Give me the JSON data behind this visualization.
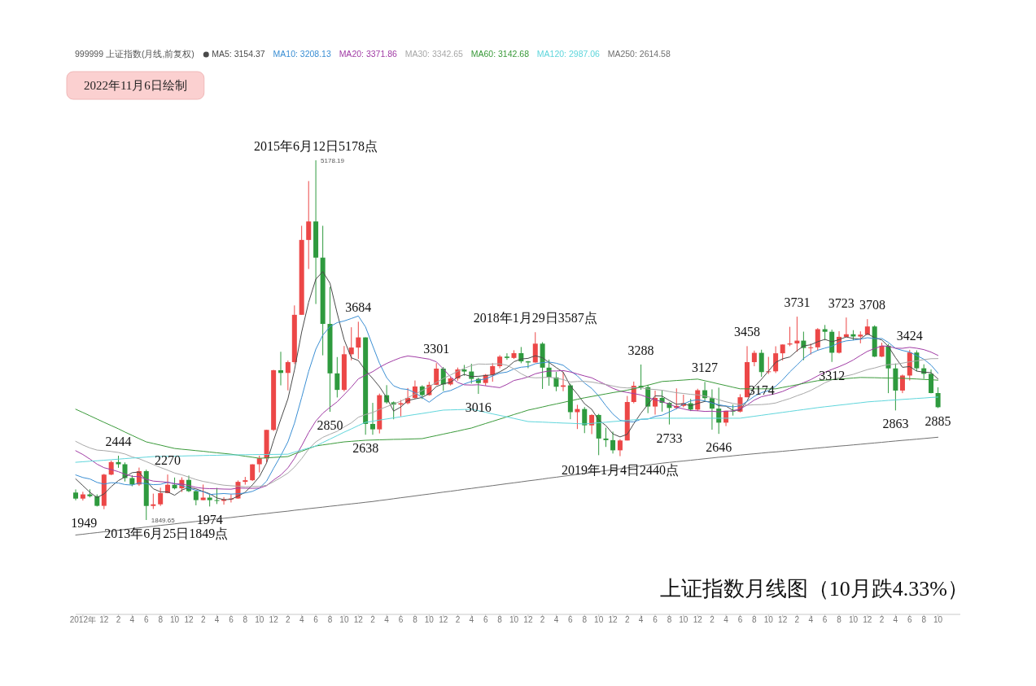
{
  "chart_data": {
    "type": "candlestick",
    "title": "上证指数月线图（10月跌4.33%）",
    "legend_title": "999999 上证指数(月线,前复权)",
    "legend": "top left",
    "tick_labels": "x",
    "xlim": [
      "2012-08",
      "2023-01-05"
    ],
    "x": [
      "2012-08",
      "2012-09",
      "2012-10",
      "2012-11",
      "2012-12",
      "2013-01",
      "2013-02",
      "2013-03",
      "2013-04",
      "2013-05",
      "2013-06",
      "2013-07",
      "2013-08",
      "2013-09",
      "2013-10",
      "2013-11",
      "2013-12",
      "2014-01",
      "2014-02",
      "2014-03",
      "2014-04",
      "2014-05",
      "2014-06",
      "2014-07",
      "2014-08",
      "2014-09",
      "2014-10",
      "2014-11",
      "2014-12",
      "2015-01",
      "2015-02",
      "2015-03",
      "2015-04",
      "2015-05",
      "2015-06",
      "2015-07",
      "2015-08",
      "2015-09",
      "2015-10",
      "2015-11",
      "2015-12",
      "2016-01",
      "2016-02",
      "2016-03",
      "2016-04",
      "2016-05",
      "2016-06",
      "2016-07",
      "2016-08",
      "2016-09",
      "2016-10",
      "2016-11",
      "2016-12",
      "2017-01",
      "2017-02",
      "2017-03",
      "2017-04",
      "2017-05",
      "2017-06",
      "2017-07",
      "2017-08",
      "2017-09",
      "2017-10",
      "2017-11",
      "2017-12",
      "2018-01",
      "2018-02",
      "2018-03",
      "2018-04",
      "2018-05",
      "2018-06",
      "2018-07",
      "2018-08",
      "2018-09",
      "2018-10",
      "2018-11",
      "2018-12",
      "2019-01",
      "2019-02",
      "2019-03",
      "2019-04",
      "2019-05",
      "2019-06",
      "2019-07",
      "2019-08",
      "2019-09",
      "2019-10",
      "2019-11",
      "2019-12",
      "2020-01",
      "2020-02",
      "2020-03",
      "2020-04",
      "2020-05",
      "2020-06",
      "2020-07",
      "2020-08",
      "2020-09",
      "2020-10",
      "2020-11",
      "2020-12",
      "2021-01",
      "2021-02",
      "2021-03",
      "2021-04",
      "2021-05",
      "2021-06",
      "2021-07",
      "2021-08",
      "2021-09",
      "2021-10",
      "2021-11",
      "2021-12",
      "2022-01",
      "2022-02",
      "2022-03",
      "2022-04",
      "2022-05",
      "2022-06",
      "2022-07",
      "2022-08",
      "2022-09",
      "2022-10"
    ],
    "xticks": [
      {
        "value": "2012-09",
        "label": "2012年"
      },
      {
        "value": "2012-12",
        "label": "12"
      },
      {
        "value": "2013-02",
        "label": "2"
      },
      {
        "value": "2013-04",
        "label": "4"
      },
      {
        "value": "2013-06",
        "label": "6"
      },
      {
        "value": "2013-08",
        "label": "8"
      },
      {
        "value": "2013-10",
        "label": "10"
      },
      {
        "value": "2013-12",
        "label": "12"
      },
      {
        "value": "2014-02",
        "label": "2"
      },
      {
        "value": "2014-04",
        "label": "4"
      },
      {
        "value": "2014-06",
        "label": "6"
      },
      {
        "value": "2014-08",
        "label": "8"
      },
      {
        "value": "2014-10",
        "label": "10"
      },
      {
        "value": "2014-12",
        "label": "12"
      },
      {
        "value": "2015-02",
        "label": "2"
      },
      {
        "value": "2015-04",
        "label": "4"
      },
      {
        "value": "2015-06",
        "label": "6"
      },
      {
        "value": "2015-08",
        "label": "8"
      },
      {
        "value": "2015-10",
        "label": "10"
      },
      {
        "value": "2015-12",
        "label": "12"
      },
      {
        "value": "2016-02",
        "label": "2"
      },
      {
        "value": "2016-04",
        "label": "4"
      },
      {
        "value": "2016-06",
        "label": "6"
      },
      {
        "value": "2016-08",
        "label": "8"
      },
      {
        "value": "2016-10",
        "label": "10"
      },
      {
        "value": "2016-12",
        "label": "12"
      },
      {
        "value": "2017-02",
        "label": "2"
      },
      {
        "value": "2017-04",
        "label": "4"
      },
      {
        "value": "2017-06",
        "label": "6"
      },
      {
        "value": "2017-08",
        "label": "8"
      },
      {
        "value": "2017-10",
        "label": "10"
      },
      {
        "value": "2017-12",
        "label": "12"
      },
      {
        "value": "2018-02",
        "label": "2"
      },
      {
        "value": "2018-04",
        "label": "4"
      },
      {
        "value": "2018-06",
        "label": "6"
      },
      {
        "value": "2018-08",
        "label": "8"
      },
      {
        "value": "2018-10",
        "label": "10"
      },
      {
        "value": "2018-12",
        "label": "12"
      },
      {
        "value": "2019-02",
        "label": "2"
      },
      {
        "value": "2019-04",
        "label": "4"
      },
      {
        "value": "2019-06",
        "label": "6"
      },
      {
        "value": "2019-08",
        "label": "8"
      },
      {
        "value": "2019-10",
        "label": "10"
      },
      {
        "value": "2019-12",
        "label": "12"
      },
      {
        "value": "2020-02",
        "label": "2"
      },
      {
        "value": "2020-04",
        "label": "4"
      },
      {
        "value": "2020-06",
        "label": "6"
      },
      {
        "value": "2020-08",
        "label": "8"
      },
      {
        "value": "2020-10",
        "label": "10"
      },
      {
        "value": "2020-12",
        "label": "12"
      },
      {
        "value": "2021-02",
        "label": "2"
      },
      {
        "value": "2021-04",
        "label": "4"
      },
      {
        "value": "2021-06",
        "label": "6"
      },
      {
        "value": "2021-08",
        "label": "8"
      },
      {
        "value": "2021-10",
        "label": "10"
      },
      {
        "value": "2021-12",
        "label": "12"
      },
      {
        "value": "2022-02",
        "label": "2"
      },
      {
        "value": "2022-04",
        "label": "4"
      },
      {
        "value": "2022-06",
        "label": "6"
      },
      {
        "value": "2022-08",
        "label": "8"
      },
      {
        "value": "2022-10",
        "label": "10"
      }
    ],
    "ohlc": [
      [
        2103,
        2132,
        2031,
        2047
      ],
      [
        2047,
        2110,
        2029,
        2086
      ],
      [
        2086,
        2133,
        2058,
        2069
      ],
      [
        2069,
        2086,
        1974,
        1980
      ],
      [
        1980,
        2276,
        1949,
        2269
      ],
      [
        2269,
        2398,
        2264,
        2385
      ],
      [
        2385,
        2444,
        2332,
        2365
      ],
      [
        2365,
        2382,
        2205,
        2237
      ],
      [
        2237,
        2263,
        2161,
        2178
      ],
      [
        2178,
        2334,
        2164,
        2301
      ],
      [
        2301,
        2315,
        1849,
        1979
      ],
      [
        1979,
        2093,
        1951,
        1994
      ],
      [
        1994,
        2148,
        1979,
        2098
      ],
      [
        2098,
        2270,
        2096,
        2175
      ],
      [
        2175,
        2242,
        2132,
        2142
      ],
      [
        2142,
        2244,
        2108,
        2220
      ],
      [
        2220,
        2260,
        2107,
        2116
      ],
      [
        2116,
        2126,
        1985,
        2033
      ],
      [
        2033,
        2177,
        2032,
        2056
      ],
      [
        2056,
        2086,
        1974,
        2033
      ],
      [
        2033,
        2146,
        1997,
        2026
      ],
      [
        2026,
        2061,
        1991,
        2039
      ],
      [
        2039,
        2087,
        2011,
        2048
      ],
      [
        2048,
        2215,
        2046,
        2202
      ],
      [
        2202,
        2248,
        2176,
        2217
      ],
      [
        2217,
        2365,
        2210,
        2364
      ],
      [
        2365,
        2445,
        2289,
        2420
      ],
      [
        2420,
        2683,
        2383,
        2683
      ],
      [
        2683,
        3239,
        2673,
        3235
      ],
      [
        3235,
        3406,
        3095,
        3210
      ],
      [
        3210,
        3325,
        3049,
        3310
      ],
      [
        3310,
        3835,
        3292,
        3748
      ],
      [
        3748,
        4572,
        3748,
        4441
      ],
      [
        4441,
        4986,
        4172,
        4612
      ],
      [
        4612,
        5178,
        3848,
        4277
      ],
      [
        4277,
        4572,
        3373,
        3664
      ],
      [
        3664,
        4006,
        2850,
        3206
      ],
      [
        3206,
        3357,
        2983,
        3053
      ],
      [
        3053,
        3459,
        3039,
        3383
      ],
      [
        3383,
        3633,
        3327,
        3445
      ],
      [
        3445,
        3684,
        3339,
        3539
      ],
      [
        3539,
        3539,
        2638,
        2738
      ],
      [
        2738,
        2933,
        2638,
        2688
      ],
      [
        2688,
        3019,
        2650,
        3004
      ],
      [
        3004,
        3097,
        2925,
        2938
      ],
      [
        2938,
        2946,
        2781,
        2917
      ],
      [
        2917,
        2960,
        2807,
        2930
      ],
      [
        2930,
        3070,
        2920,
        2979
      ],
      [
        2979,
        3140,
        2970,
        3085
      ],
      [
        3085,
        3096,
        2969,
        3005
      ],
      [
        3005,
        3128,
        3000,
        3100
      ],
      [
        3100,
        3301,
        3097,
        3250
      ],
      [
        3250,
        3265,
        3044,
        3104
      ],
      [
        3104,
        3174,
        3094,
        3159
      ],
      [
        3159,
        3260,
        3138,
        3242
      ],
      [
        3242,
        3284,
        3184,
        3223
      ],
      [
        3223,
        3295,
        3112,
        3155
      ],
      [
        3155,
        3167,
        3016,
        3117
      ],
      [
        3117,
        3200,
        3092,
        3192
      ],
      [
        3192,
        3301,
        3129,
        3273
      ],
      [
        3273,
        3375,
        3253,
        3361
      ],
      [
        3361,
        3392,
        3331,
        3349
      ],
      [
        3349,
        3420,
        3340,
        3393
      ],
      [
        3393,
        3450,
        3300,
        3317
      ],
      [
        3317,
        3321,
        3254,
        3307
      ],
      [
        3307,
        3587,
        3306,
        3481
      ],
      [
        3481,
        3495,
        3062,
        3259
      ],
      [
        3259,
        3334,
        3091,
        3169
      ],
      [
        3169,
        3220,
        3041,
        3082
      ],
      [
        3082,
        3219,
        3041,
        3095
      ],
      [
        3095,
        3111,
        2782,
        2847
      ],
      [
        2847,
        2915,
        2691,
        2876
      ],
      [
        2876,
        2894,
        2653,
        2725
      ],
      [
        2725,
        2827,
        2644,
        2821
      ],
      [
        2821,
        2831,
        2449,
        2603
      ],
      [
        2603,
        2703,
        2525,
        2588
      ],
      [
        2588,
        2667,
        2464,
        2494
      ],
      [
        2494,
        2597,
        2440,
        2585
      ],
      [
        2585,
        2997,
        2585,
        2941
      ],
      [
        2941,
        3130,
        2929,
        3091
      ],
      [
        3091,
        3288,
        3055,
        3078
      ],
      [
        3078,
        3100,
        2838,
        2899
      ],
      [
        2899,
        3047,
        2824,
        2979
      ],
      [
        2979,
        3049,
        2852,
        2933
      ],
      [
        2933,
        2939,
        2733,
        2886
      ],
      [
        2886,
        3067,
        2875,
        2905
      ],
      [
        2905,
        3009,
        2891,
        2929
      ],
      [
        2929,
        2970,
        2857,
        2871
      ],
      [
        2871,
        3064,
        2857,
        3050
      ],
      [
        3050,
        3127,
        2955,
        2977
      ],
      [
        2977,
        3058,
        2685,
        2880
      ],
      [
        2880,
        3074,
        2646,
        2750
      ],
      [
        2750,
        2860,
        2718,
        2860
      ],
      [
        2860,
        2917,
        2815,
        2852
      ],
      [
        2852,
        3013,
        2845,
        2985
      ],
      [
        2985,
        3458,
        2985,
        3310
      ],
      [
        3310,
        3417,
        3272,
        3396
      ],
      [
        3396,
        3425,
        3174,
        3218
      ],
      [
        3218,
        3359,
        3200,
        3225
      ],
      [
        3225,
        3457,
        3209,
        3392
      ],
      [
        3392,
        3474,
        3325,
        3473
      ],
      [
        3473,
        3637,
        3458,
        3483
      ],
      [
        3483,
        3731,
        3407,
        3509
      ],
      [
        3509,
        3592,
        3328,
        3441
      ],
      [
        3441,
        3482,
        3380,
        3447
      ],
      [
        3447,
        3625,
        3416,
        3615
      ],
      [
        3615,
        3654,
        3512,
        3591
      ],
      [
        3591,
        3611,
        3312,
        3397
      ],
      [
        3397,
        3596,
        3390,
        3544
      ],
      [
        3544,
        3723,
        3542,
        3568
      ],
      [
        3568,
        3606,
        3512,
        3547
      ],
      [
        3547,
        3595,
        3484,
        3564
      ],
      [
        3564,
        3708,
        3561,
        3640
      ],
      [
        3640,
        3651,
        3357,
        3361
      ],
      [
        3361,
        3490,
        3357,
        3462
      ],
      [
        3462,
        3478,
        3023,
        3252
      ],
      [
        3252,
        3298,
        2863,
        3047
      ],
      [
        3047,
        3195,
        3023,
        3186
      ],
      [
        3186,
        3424,
        3140,
        3399
      ],
      [
        3399,
        3419,
        3226,
        3253
      ],
      [
        3253,
        3290,
        3155,
        3202
      ],
      [
        3202,
        3242,
        3021,
        3024
      ],
      [
        3024,
        3077,
        2885,
        2893
      ]
    ],
    "series": [
      {
        "name": "MA5: 3154.37",
        "type": "line",
        "color": "#4a4a4a",
        "values": [
          2229,
          2167,
          2106,
          2057,
          2090,
          2158,
          2214,
          2247,
          2287,
          2293,
          2212,
          2138,
          2110,
          2109,
          2078,
          2126,
          2150,
          2137,
          2113,
          2092,
          2053,
          2037,
          2040,
          2070,
          2106,
          2174,
          2250,
          2377,
          2584,
          2782,
          2972,
          3237,
          3589,
          3864,
          4078,
          4148,
          4040,
          3762,
          3517,
          3350,
          3325,
          3232,
          3159,
          3083,
          2981,
          2857,
          2895,
          2954,
          2970,
          2983,
          3020,
          3084,
          3109,
          3124,
          3171,
          3196,
          3177,
          3179,
          3186,
          3192,
          3220,
          3258,
          3314,
          3339,
          3345,
          3369,
          3351,
          3307,
          3260,
          3217,
          3090,
          3014,
          2925,
          2873,
          2774,
          2723,
          2646,
          2618,
          2642,
          2740,
          2838,
          2919,
          2998,
          2996,
          2955,
          2920,
          2926,
          2905,
          2928,
          2946,
          2941,
          2906,
          2903,
          2864,
          2865,
          2951,
          3081,
          3152,
          3227,
          3308,
          3341,
          3358,
          3416,
          3460,
          3471,
          3499,
          3521,
          3498,
          3519,
          3543,
          3529,
          3524,
          3573,
          3536,
          3515,
          3456,
          3352,
          3262,
          3269,
          3227,
          3217,
          3213,
          3154
        ]
      },
      {
        "name": "MA10: 3208.13",
        "type": "line",
        "color": "#3b8fd4",
        "values": [
          2266,
          2242,
          2229,
          2197,
          2181,
          2194,
          2191,
          2177,
          2172,
          2192,
          2185,
          2176,
          2179,
          2198,
          2186,
          2169,
          2144,
          2124,
          2111,
          2085,
          2090,
          2094,
          2089,
          2092,
          2099,
          2114,
          2144,
          2209,
          2327,
          2444,
          2573,
          2744,
          2983,
          3224,
          3430,
          3560,
          3639,
          3676,
          3691,
          3714,
          3737,
          3636,
          3461,
          3300,
          3166,
          3091,
          3064,
          3057,
          3027,
          2982,
          2939,
          2990,
          3032,
          3047,
          3077,
          3108,
          3131,
          3144,
          3155,
          3182,
          3208,
          3218,
          3247,
          3263,
          3269,
          3295,
          3305,
          3311,
          3300,
          3281,
          3230,
          3183,
          3116,
          3067,
          2996,
          2907,
          2830,
          2772,
          2758,
          2757,
          2781,
          2783,
          2808,
          2819,
          2848,
          2879,
          2923,
          2952,
          2962,
          2951,
          2931,
          2916,
          2904,
          2896,
          2906,
          2946,
          2994,
          3028,
          3046,
          3087,
          3146,
          3220,
          3284,
          3344,
          3390,
          3420,
          3440,
          3457,
          3490,
          3507,
          3514,
          3523,
          3536,
          3528,
          3529,
          3493,
          3438,
          3418,
          3403,
          3371,
          3337,
          3283,
          3208
        ]
      },
      {
        "name": "MA20: 3371.86",
        "type": "line",
        "color": "#a13ca5",
        "values": [
          2490,
          2455,
          2413,
          2366,
          2333,
          2316,
          2296,
          2273,
          2253,
          2250,
          2226,
          2209,
          2204,
          2198,
          2184,
          2182,
          2168,
          2151,
          2142,
          2139,
          2138,
          2135,
          2134,
          2145,
          2143,
          2142,
          2144,
          2167,
          2219,
          2265,
          2332,
          2419,
          2536,
          2658,
          2765,
          2837,
          2892,
          2943,
          3009,
          3079,
          3155,
          3190,
          3222,
          3262,
          3298,
          3326,
          3352,
          3367,
          3359,
          3348,
          3338,
          3313,
          3247,
          3174,
          3122,
          3100,
          3098,
          3101,
          3091,
          3082,
          3074,
          3104,
          3140,
          3155,
          3173,
          3202,
          3218,
          3228,
          3228,
          3232,
          3219,
          3201,
          3182,
          3165,
          3133,
          3101,
          3068,
          3042,
          3029,
          3019,
          3006,
          2983,
          2962,
          2943,
          2922,
          2893,
          2877,
          2862,
          2860,
          2854,
          2856,
          2850,
          2856,
          2858,
          2877,
          2913,
          2959,
          2990,
          3004,
          3019,
          3039,
          3068,
          3094,
          3120,
          3148,
          3183,
          3217,
          3243,
          3268,
          3297,
          3330,
          3372,
          3410,
          3436,
          3460,
          3457,
          3439,
          3438,
          3447,
          3439,
          3426,
          3403,
          3372
        ]
      },
      {
        "name": "MA30: 3342.65",
        "type": "line",
        "color": "#a8a8a8",
        "values": [
          2577,
          2543,
          2516,
          2496,
          2491,
          2483,
          2474,
          2460,
          2433,
          2416,
          2389,
          2362,
          2335,
          2310,
          2284,
          2267,
          2246,
          2223,
          2206,
          2195,
          2181,
          2171,
          2166,
          2162,
          2156,
          2159,
          2160,
          2170,
          2203,
          2241,
          2283,
          2338,
          2417,
          2505,
          2572,
          2614,
          2643,
          2670,
          2710,
          2748,
          2800,
          2825,
          2844,
          2872,
          2898,
          2922,
          2949,
          2981,
          3015,
          3047,
          3083,
          3123,
          3159,
          3191,
          3225,
          3253,
          3278,
          3293,
          3291,
          3293,
          3295,
          3281,
          3247,
          3203,
          3171,
          3165,
          3167,
          3171,
          3161,
          3149,
          3126,
          3131,
          3132,
          3126,
          3114,
          3103,
          3089,
          3076,
          3071,
          3073,
          3073,
          3061,
          3057,
          3050,
          3038,
          3027,
          3020,
          3012,
          3007,
          2996,
          2981,
          2961,
          2943,
          2928,
          2917,
          2911,
          2916,
          2917,
          2922,
          2932,
          2953,
          2973,
          2999,
          3020,
          3048,
          3082,
          3119,
          3146,
          3166,
          3182,
          3197,
          3220,
          3241,
          3256,
          3275,
          3287,
          3291,
          3301,
          3313,
          3322,
          3333,
          3342,
          3343
        ]
      },
      {
        "name": "MA60: 3142.68",
        "type": "line",
        "color": "#3a9a3a",
        "values": [
          2874,
          2844,
          2814,
          2783,
          2753,
          2723,
          2693,
          2663,
          2632,
          2602,
          2572,
          2557,
          2542,
          2526,
          2511,
          2504,
          2498,
          2491,
          2485,
          2478,
          2471,
          2465,
          2458,
          2449,
          2439,
          2430,
          2420,
          2424,
          2428,
          2432,
          2436,
          2461,
          2485,
          2510,
          2534,
          2544,
          2553,
          2563,
          2572,
          2577,
          2582,
          2587,
          2589,
          2591,
          2593,
          2595,
          2596,
          2598,
          2600,
          2602,
          2616,
          2630,
          2644,
          2658,
          2672,
          2686,
          2700,
          2721,
          2742,
          2762,
          2783,
          2804,
          2825,
          2845,
          2866,
          2880,
          2895,
          2909,
          2923,
          2937,
          2952,
          2966,
          2980,
          2992,
          3004,
          3016,
          3028,
          3039,
          3051,
          3063,
          3080,
          3097,
          3114,
          3131,
          3135,
          3140,
          3144,
          3149,
          3153,
          3138,
          3123,
          3108,
          3093,
          3078,
          3063,
          3063,
          3063,
          3063,
          3063,
          3063,
          3076,
          3088,
          3101,
          3113,
          3126,
          3138,
          3143,
          3148,
          3153,
          3158,
          3163,
          3168,
          3167,
          3166,
          3164,
          3163,
          3162,
          3161,
          3157,
          3154,
          3150,
          3147,
          3143
        ]
      },
      {
        "name": "MA120: 2987.06",
        "type": "line",
        "color": "#60d6dc",
        "values": [
          2383,
          2388,
          2393,
          2397,
          2402,
          2407,
          2412,
          2417,
          2422,
          2426,
          2431,
          2436,
          2437,
          2439,
          2440,
          2441,
          2443,
          2444,
          2446,
          2447,
          2448,
          2450,
          2451,
          2452,
          2453,
          2454,
          2455,
          2455,
          2456,
          2457,
          2458,
          2477,
          2496,
          2515,
          2534,
          2566,
          2598,
          2630,
          2662,
          2692,
          2723,
          2753,
          2763,
          2774,
          2784,
          2794,
          2804,
          2815,
          2825,
          2835,
          2845,
          2856,
          2866,
          2868,
          2870,
          2872,
          2874,
          2860,
          2846,
          2831,
          2817,
          2803,
          2789,
          2774,
          2760,
          2757,
          2755,
          2752,
          2749,
          2746,
          2744,
          2741,
          2738,
          2743,
          2749,
          2754,
          2760,
          2765,
          2771,
          2776,
          2781,
          2786,
          2791,
          2791,
          2791,
          2791,
          2791,
          2791,
          2791,
          2791,
          2791,
          2791,
          2791,
          2791,
          2791,
          2800,
          2809,
          2818,
          2827,
          2836,
          2845,
          2854,
          2863,
          2871,
          2880,
          2889,
          2897,
          2904,
          2912,
          2919,
          2927,
          2934,
          2942,
          2947,
          2951,
          2956,
          2960,
          2965,
          2969,
          2974,
          2978,
          2983,
          2987
        ]
      },
      {
        "name": "MA250: 2614.58",
        "type": "line",
        "color": "#707070",
        "values": [
          1710,
          1717,
          1725,
          1732,
          1740,
          1747,
          1754,
          1762,
          1769,
          1776,
          1784,
          1791,
          1799,
          1806,
          1813,
          1821,
          1828,
          1835,
          1843,
          1850,
          1858,
          1865,
          1872,
          1880,
          1887,
          1895,
          1902,
          1909,
          1917,
          1924,
          1931,
          1939,
          1946,
          1954,
          1961,
          1968,
          1976,
          1983,
          1991,
          1998,
          2005,
          2013,
          2020,
          2029,
          2037,
          2046,
          2055,
          2063,
          2072,
          2081,
          2089,
          2098,
          2107,
          2115,
          2124,
          2133,
          2141,
          2150,
          2159,
          2167,
          2176,
          2185,
          2193,
          2202,
          2211,
          2219,
          2228,
          2237,
          2245,
          2254,
          2262,
          2271,
          2280,
          2288,
          2297,
          2306,
          2314,
          2323,
          2332,
          2340,
          2349,
          2358,
          2366,
          2375,
          2382,
          2389,
          2395,
          2402,
          2409,
          2416,
          2423,
          2430,
          2436,
          2443,
          2450,
          2456,
          2462,
          2468,
          2474,
          2479,
          2485,
          2491,
          2497,
          2503,
          2509,
          2515,
          2521,
          2527,
          2533,
          2538,
          2544,
          2550,
          2556,
          2562,
          2568,
          2574,
          2580,
          2586,
          2591,
          2597,
          2603,
          2609,
          2615
        ]
      }
    ],
    "annotations": [
      "2022年11月6日绘制",
      {
        "text": "2015年6月12日5178点",
        "x": "2015-06",
        "y": 5178
      },
      {
        "text": "5178.19",
        "x": "2015-06",
        "y": 5178.19
      },
      {
        "text": "2013年6月25日1849点",
        "x": "2013-06",
        "y": 1849
      },
      {
        "text": "1849.65",
        "x": "2013-06",
        "y": 1849.65
      },
      {
        "text": "1949",
        "x": "2012-12",
        "y": 1949
      },
      {
        "text": "2444",
        "x": "2013-02",
        "y": 2444
      },
      {
        "text": "2270",
        "x": "2013-09",
        "y": 2270
      },
      {
        "text": "1974",
        "x": "2014-03",
        "y": 1974
      },
      {
        "text": "3684",
        "x": "2015-12",
        "y": 3684
      },
      {
        "text": "2850",
        "x": "2015-08",
        "y": 2850
      },
      {
        "text": "2638",
        "x": "2016-01",
        "y": 2638
      },
      {
        "text": "3301",
        "x": "2016-11",
        "y": 3301
      },
      {
        "text": "3016",
        "x": "2017-05",
        "y": 3016
      },
      {
        "text": "2018年1月29日3587点",
        "x": "2018-01",
        "y": 3587
      },
      {
        "text": "2019年1月4日2440点",
        "x": "2019-01",
        "y": 2440
      },
      {
        "text": "3288",
        "x": "2019-04",
        "y": 3288
      },
      {
        "text": "2733",
        "x": "2019-08",
        "y": 2733
      },
      {
        "text": "3127",
        "x": "2020-01",
        "y": 3127
      },
      {
        "text": "2646",
        "x": "2020-03",
        "y": 2646
      },
      {
        "text": "3458",
        "x": "2020-07",
        "y": 3458
      },
      {
        "text": "3174",
        "x": "2020-09",
        "y": 3174
      },
      {
        "text": "3731",
        "x": "2021-02",
        "y": 3731
      },
      {
        "text": "3312",
        "x": "2021-07",
        "y": 3312
      },
      {
        "text": "3723",
        "x": "2021-09",
        "y": 3723
      },
      {
        "text": "3708",
        "x": "2021-12",
        "y": 3708
      },
      {
        "text": "3424",
        "x": "2022-06",
        "y": 3424
      },
      {
        "text": "2863",
        "x": "2022-04",
        "y": 2863
      },
      {
        "text": "2885",
        "x": "2022-10",
        "y": 2885
      }
    ]
  }
}
